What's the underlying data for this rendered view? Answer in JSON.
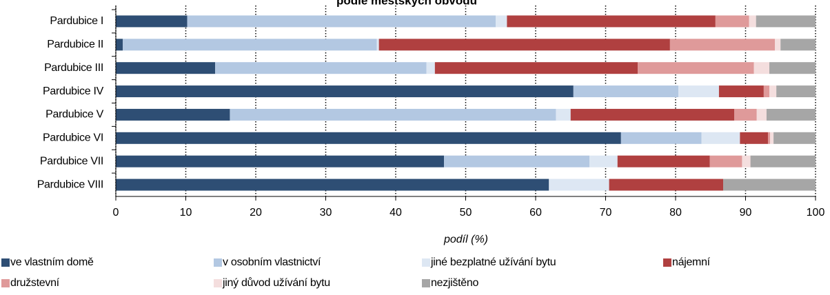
{
  "chart_data": {
    "type": "stacked_barh",
    "title": "podle městských obvodů",
    "x_label": "podíl (%)",
    "categories": [
      "Pardubice I",
      "Pardubice II",
      "Pardubice III",
      "Pardubice IV",
      "Pardubice V",
      "Pardubice VI",
      "Pardubice VII",
      "Pardubice VIII"
    ],
    "series": [
      {
        "name": "ve vlastním domě",
        "color": "#2e4e74",
        "values": [
          10.2,
          1.0,
          14.2,
          65.4,
          16.3,
          72.2,
          46.9,
          61.9
        ]
      },
      {
        "name": "v osobním vlastnictví",
        "color": "#b3c8e2",
        "values": [
          44.1,
          36.3,
          30.2,
          15.0,
          46.6,
          11.5,
          20.8,
          0
        ]
      },
      {
        "name": "jiné bezplatné užívání bytu",
        "color": "#dde7f3",
        "values": [
          1.6,
          0.3,
          1.2,
          5.8,
          2.1,
          5.5,
          4.0,
          8.6
        ]
      },
      {
        "name": "nájemní",
        "color": "#b04040",
        "values": [
          29.8,
          41.6,
          29.0,
          6.4,
          23.4,
          4.0,
          13.2,
          16.3
        ]
      },
      {
        "name": "družstevní",
        "color": "#df9a9a",
        "values": [
          4.8,
          15.0,
          16.6,
          0.8,
          3.2,
          0.3,
          4.6,
          0
        ]
      },
      {
        "name": "jiný důvod užívání bytu",
        "color": "#f4dede",
        "values": [
          1.0,
          0.8,
          2.2,
          1.0,
          1.4,
          0.5,
          1.2,
          0
        ]
      },
      {
        "name": "nezjištěno",
        "color": "#a6a6a6",
        "values": [
          8.5,
          5.0,
          6.6,
          5.6,
          7.0,
          6.0,
          9.3,
          13.2
        ]
      }
    ],
    "xlim": [
      0,
      100
    ],
    "xticks": [
      0,
      10,
      20,
      30,
      40,
      50,
      60,
      70,
      80,
      90,
      100
    ],
    "grid": true,
    "legend": "bottom"
  }
}
